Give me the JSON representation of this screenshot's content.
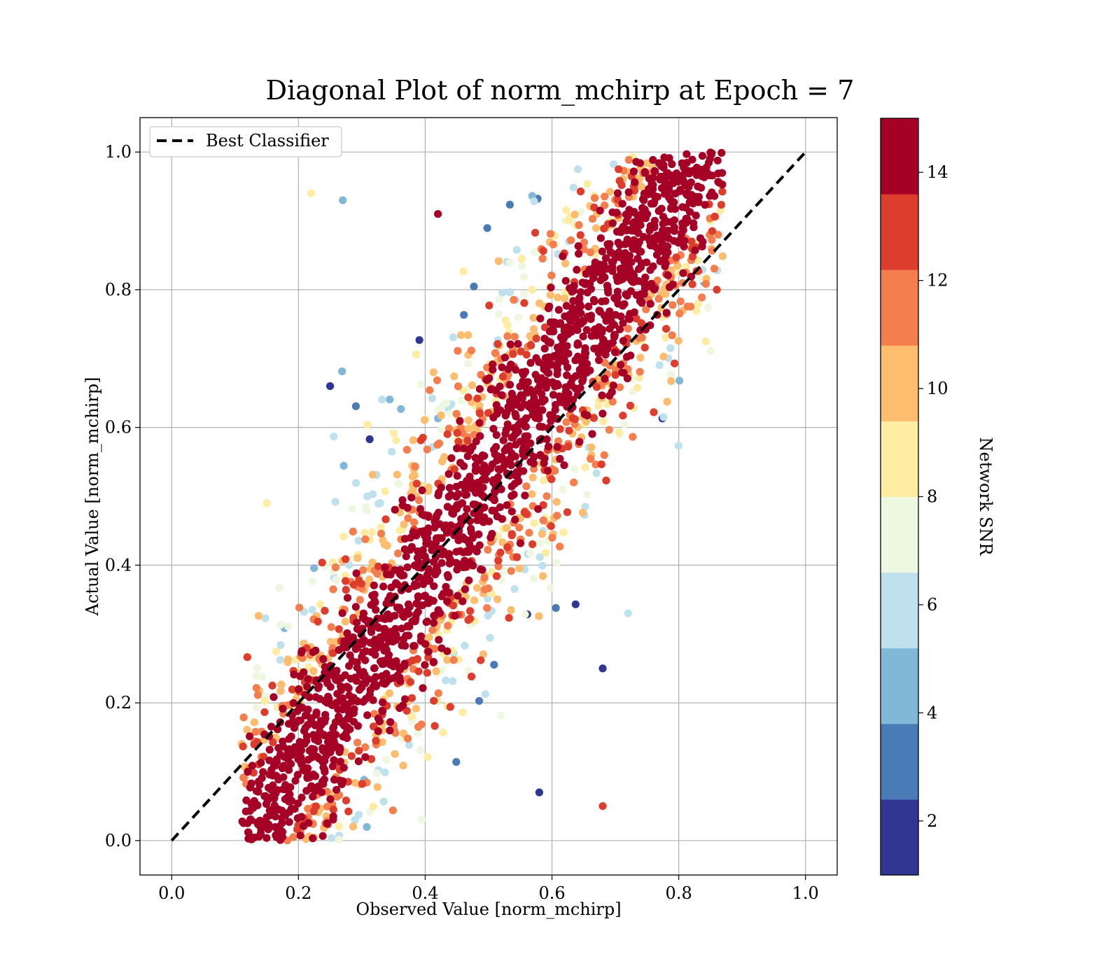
{
  "chart_data": {
    "type": "scatter",
    "title": "Diagonal Plot of norm_mchirp at Epoch = 7",
    "xlabel": "Observed Value [norm_mchirp]",
    "ylabel": "Actual Value [norm_mchirp]",
    "xlim": [
      -0.05,
      1.05
    ],
    "ylim": [
      -0.05,
      1.05
    ],
    "xticks": [
      "0.0",
      "0.2",
      "0.4",
      "0.6",
      "0.8",
      "1.0"
    ],
    "yticks": [
      "0.0",
      "0.2",
      "0.4",
      "0.6",
      "0.8",
      "1.0"
    ],
    "grid": true,
    "legend": {
      "placement": "upper-left",
      "entries": [
        "Best Classifier"
      ]
    },
    "reference_line": {
      "name": "Best Classifier",
      "style": "dashed",
      "color": "#000000",
      "x": [
        0.0,
        1.0
      ],
      "y": [
        0.0,
        1.0
      ]
    },
    "colorbar": {
      "label": "Network SNR",
      "range": [
        1,
        15
      ],
      "ticks": [
        "2",
        "4",
        "6",
        "8",
        "10",
        "12",
        "14"
      ],
      "colors": [
        "#313695",
        "#4a7bb7",
        "#82b8d7",
        "#bfe1ed",
        "#eef7df",
        "#fdeca2",
        "#fcbd6f",
        "#f57e4f",
        "#dc3d2d",
        "#a50026"
      ]
    },
    "series": [
      {
        "name": "Best Classifier",
        "type": "line",
        "x": [
          0.0,
          1.0
        ],
        "y": [
          0.0,
          1.0
        ]
      },
      {
        "type": "scatter",
        "description_points": [
          {
            "x": 0.86,
            "y": 0.8,
            "snr": 13
          },
          {
            "x": 0.68,
            "y": 0.05,
            "snr": 13
          },
          {
            "x": 0.85,
            "y": 0.9,
            "snr": 9
          },
          {
            "x": 0.22,
            "y": 0.94,
            "snr": 9
          },
          {
            "x": 0.68,
            "y": 0.25,
            "snr": 2
          },
          {
            "x": 0.58,
            "y": 0.07,
            "snr": 2
          },
          {
            "x": 0.15,
            "y": 0.49,
            "snr": 9
          },
          {
            "x": 0.27,
            "y": 0.93,
            "snr": 4
          },
          {
            "x": 0.42,
            "y": 0.91,
            "snr": 14
          },
          {
            "x": 0.25,
            "y": 0.66,
            "snr": 2
          },
          {
            "x": 0.72,
            "y": 0.33,
            "snr": 6
          },
          {
            "x": 0.12,
            "y": 0.1,
            "snr": 14
          }
        ]
      }
    ]
  }
}
